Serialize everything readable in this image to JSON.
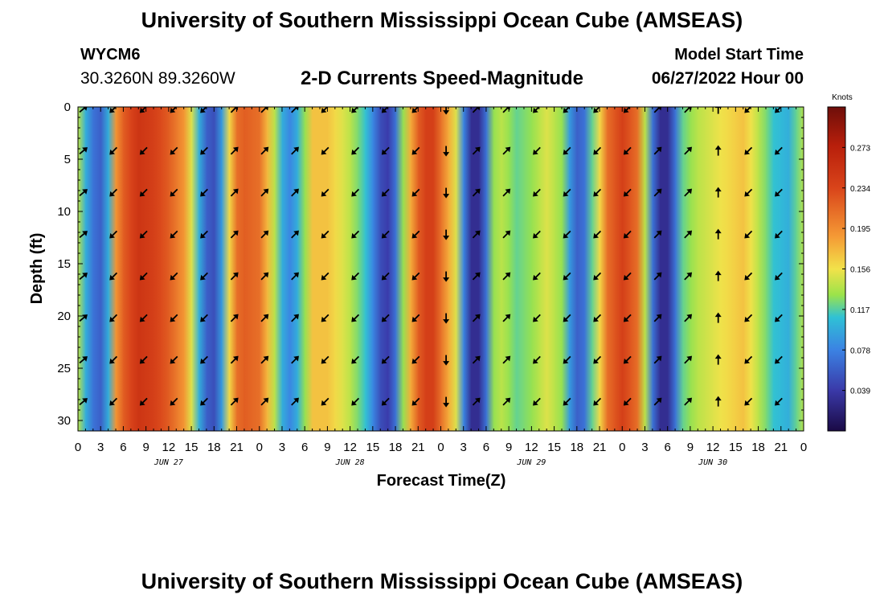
{
  "header": {
    "title": "University of Southern Mississippi Ocean Cube (AMSEAS)",
    "station_id": "WYCM6",
    "station_coords": "30.3260N  89.3260W",
    "plot_title": "2-D Currents Speed-Magnitude",
    "model_start_label": "Model Start Time",
    "model_start_value": "06/27/2022 Hour 00"
  },
  "footer": {
    "title": "University of Southern Mississippi Ocean Cube (AMSEAS)"
  },
  "chart_data": {
    "type": "heatmap",
    "title": "2-D Currents Speed-Magnitude",
    "xlabel": "Forecast Time(Z)",
    "ylabel": "Depth (ft)",
    "x_range_hours": [
      0,
      96
    ],
    "y_range_ft": [
      0,
      31
    ],
    "x_tick_labels": [
      "0",
      "3",
      "6",
      "9",
      "12",
      "15",
      "18",
      "21",
      "0",
      "3",
      "6",
      "9",
      "12",
      "15",
      "18",
      "21",
      "0",
      "3",
      "6",
      "9",
      "12",
      "15",
      "18",
      "21",
      "0",
      "3",
      "6",
      "9",
      "12",
      "15",
      "18",
      "21",
      "0"
    ],
    "y_ticks": [
      0,
      5,
      10,
      15,
      20,
      25,
      30
    ],
    "date_labels": [
      {
        "label": "JUN 27",
        "hour": 12
      },
      {
        "label": "JUN 28",
        "hour": 36
      },
      {
        "label": "JUN 29",
        "hour": 60
      },
      {
        "label": "JUN 30",
        "hour": 84
      }
    ],
    "colorbar": {
      "units": "Knots",
      "min": 0.0,
      "max": 0.312,
      "tick_values": [
        0.039,
        0.078,
        0.117,
        0.156,
        0.195,
        0.234,
        0.273
      ],
      "tick_labels": [
        "0.039",
        "0.078",
        "0.117",
        "0.156",
        "0.195",
        "0.234",
        "0.273"
      ]
    },
    "speed_profile_knots": {
      "hours": [
        0,
        1,
        2,
        3,
        4,
        5,
        6,
        8,
        10,
        12,
        14,
        15,
        16,
        17,
        18,
        19,
        20,
        21,
        22,
        24,
        26,
        27,
        28,
        29,
        30,
        31,
        33,
        36,
        38,
        39,
        40,
        41,
        42,
        43,
        44,
        45,
        46,
        47,
        48,
        50,
        51,
        52,
        53,
        54,
        55,
        56,
        57,
        58,
        60,
        62,
        64,
        65,
        66,
        67,
        68,
        69,
        70,
        72,
        74,
        75,
        76,
        77,
        78,
        79,
        80,
        81,
        82,
        84,
        86,
        88,
        90,
        92,
        94,
        96
      ],
      "speed": [
        0.14,
        0.1,
        0.07,
        0.06,
        0.1,
        0.19,
        0.22,
        0.25,
        0.24,
        0.22,
        0.19,
        0.15,
        0.1,
        0.06,
        0.05,
        0.09,
        0.16,
        0.21,
        0.22,
        0.21,
        0.14,
        0.1,
        0.08,
        0.1,
        0.13,
        0.17,
        0.17,
        0.14,
        0.11,
        0.08,
        0.05,
        0.04,
        0.07,
        0.13,
        0.18,
        0.22,
        0.24,
        0.24,
        0.21,
        0.15,
        0.08,
        0.03,
        0.03,
        0.07,
        0.13,
        0.14,
        0.13,
        0.12,
        0.13,
        0.15,
        0.13,
        0.09,
        0.06,
        0.07,
        0.12,
        0.16,
        0.21,
        0.24,
        0.21,
        0.14,
        0.07,
        0.03,
        0.03,
        0.07,
        0.12,
        0.13,
        0.14,
        0.15,
        0.16,
        0.17,
        0.14,
        0.11,
        0.1,
        0.14
      ]
    },
    "depth_rows_ft": [
      0,
      2,
      4,
      6,
      8,
      10,
      12,
      14,
      16,
      18,
      20,
      22,
      24,
      26,
      28,
      30
    ],
    "vector_sample_hours": [
      0,
      4,
      8,
      12,
      16,
      20,
      24,
      28,
      32,
      36,
      40,
      44,
      48,
      52,
      56,
      60,
      64,
      68,
      72,
      76,
      80,
      84,
      88,
      92
    ],
    "vector_sample_depths_ft": [
      0,
      4,
      8,
      12,
      16,
      20,
      24,
      28
    ],
    "vector_direction_deg": [
      50,
      225,
      225,
      225,
      225,
      45,
      45,
      45,
      225,
      225,
      225,
      225,
      180,
      45,
      45,
      225,
      225,
      225,
      225,
      45,
      45,
      0,
      225,
      225
    ]
  }
}
